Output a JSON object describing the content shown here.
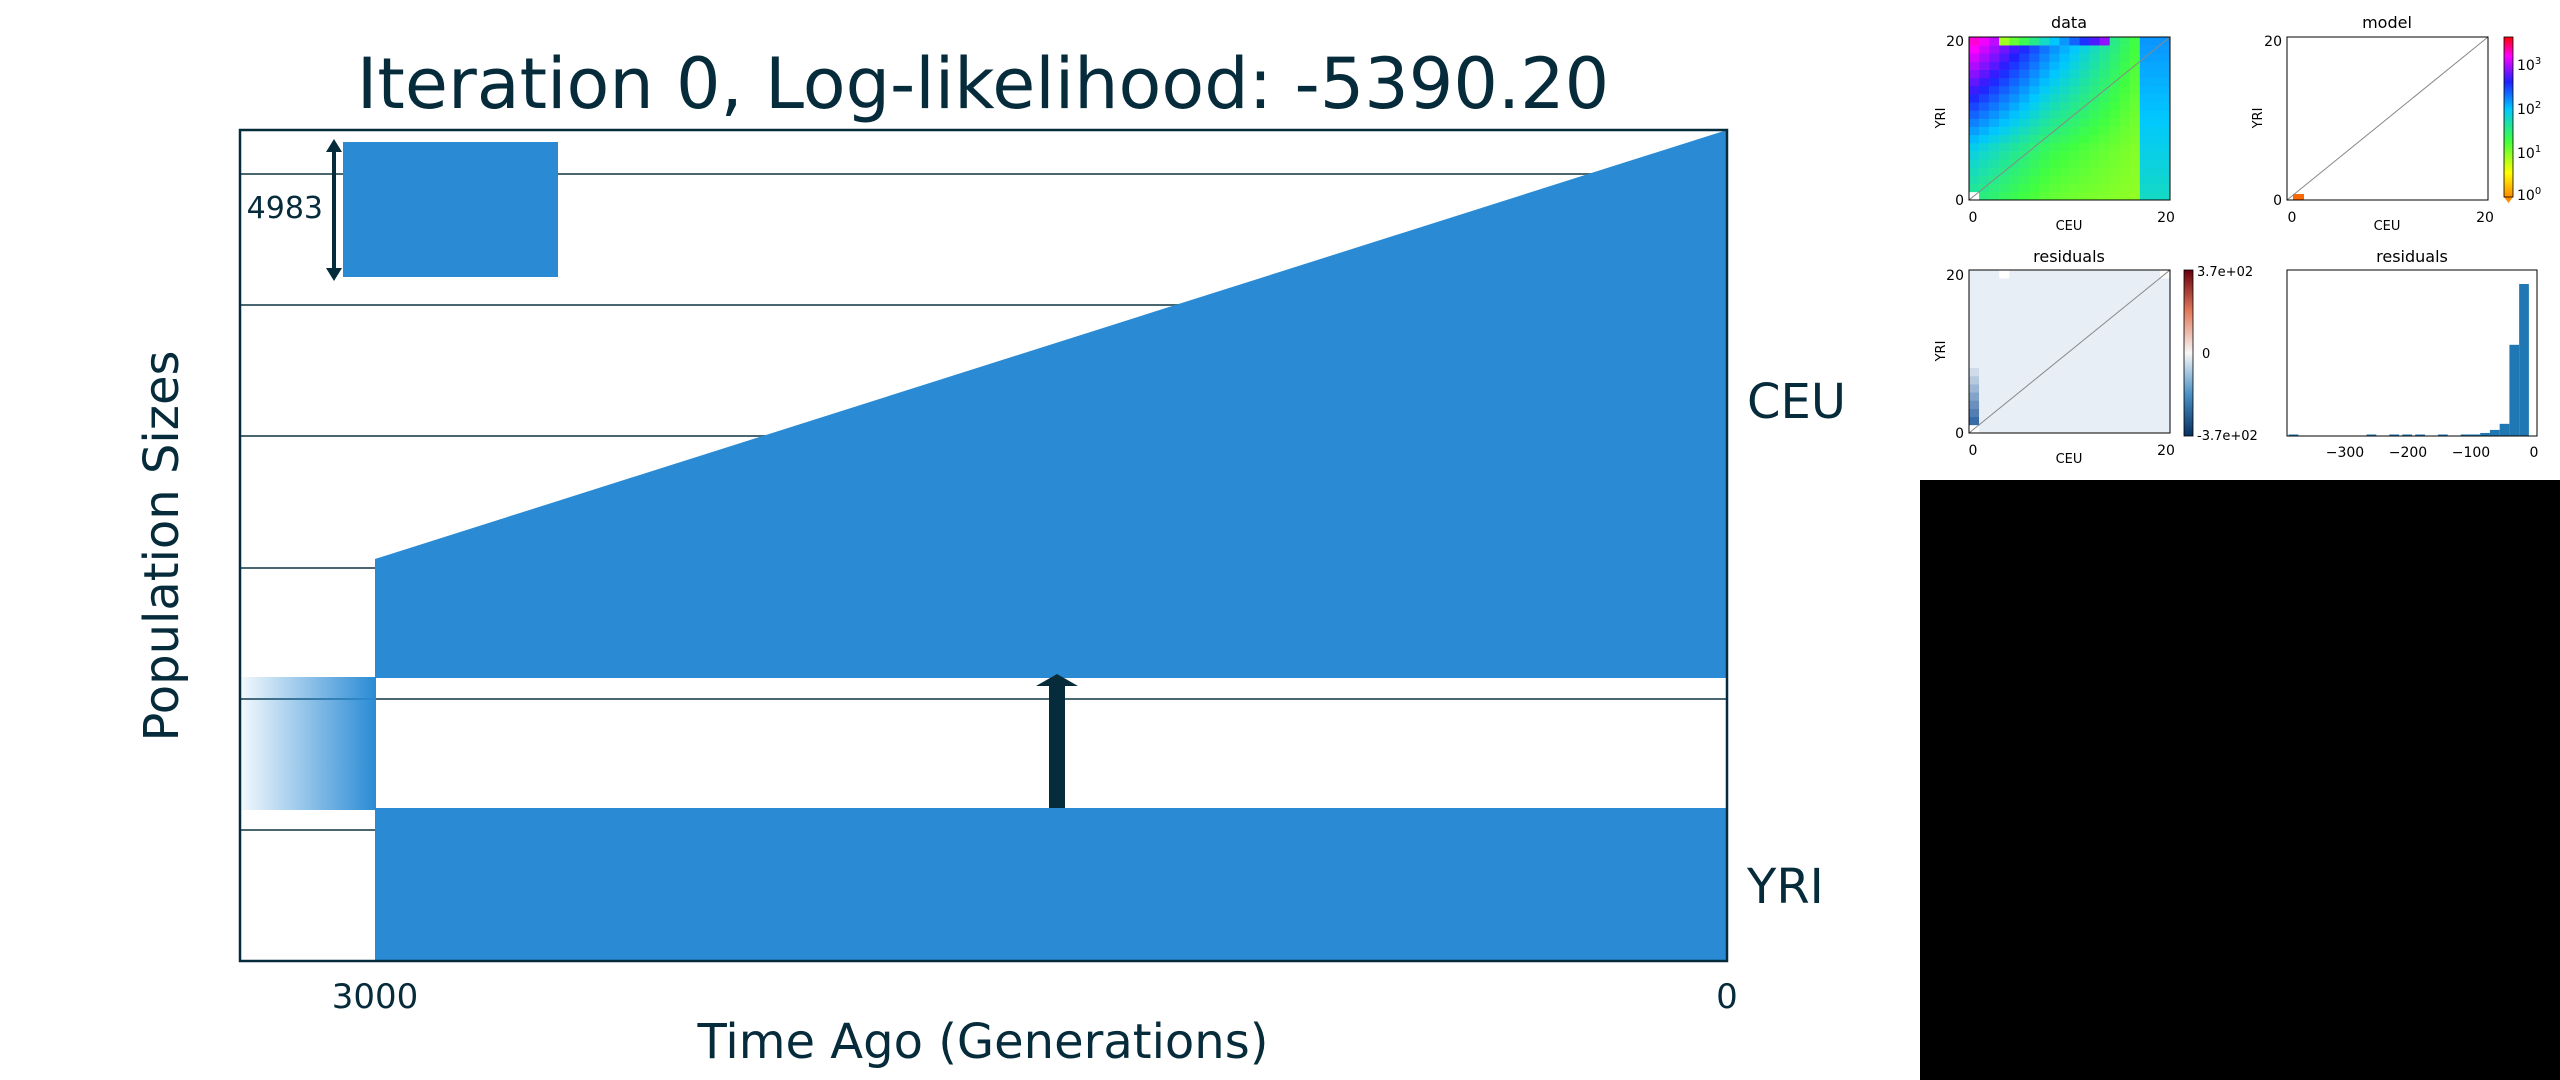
{
  "chart_data": [
    {
      "type": "area",
      "title": "Iteration 0, Log-likelihood: -5390.20",
      "xlabel": "Time Ago (Generations)",
      "ylabel": "Population Sizes",
      "x_ticks": [
        "3000",
        "0"
      ],
      "xlim": [
        3200,
        0
      ],
      "scale_bar": {
        "label": "4983",
        "value": 4983
      },
      "populations": [
        {
          "name": "CEU",
          "size_at_3000": 4983,
          "size_at_0": 20000
        },
        {
          "name": "YRI",
          "size_at_3000": 5600,
          "size_at_0": 5600
        }
      ],
      "ancestral": {
        "time_start": 3200,
        "time_end": 3000
      },
      "split_time": 3000,
      "migration": {
        "time": 1500,
        "from": "YRI",
        "to": "CEU"
      },
      "colors": {
        "population": "#2a8bd4",
        "text": "#062b3b",
        "grid": "#4a6670"
      }
    },
    {
      "type": "heatmap",
      "title": "data",
      "xlabel": "CEU",
      "ylabel": "YRI",
      "xticks": [
        "0",
        "20"
      ],
      "yticks": [
        "0",
        "20"
      ]
    },
    {
      "type": "heatmap",
      "title": "model",
      "xlabel": "CEU",
      "ylabel": "YRI",
      "xticks": [
        "0",
        "20"
      ],
      "yticks": [
        "0",
        "20"
      ],
      "colorbar": {
        "scale": "log",
        "ticks": [
          "10",
          "10",
          "10",
          "10"
        ],
        "exponents": [
          "3",
          "2",
          "1",
          "0"
        ]
      }
    },
    {
      "type": "heatmap",
      "title": "residuals",
      "xlabel": "CEU",
      "ylabel": "YRI",
      "xticks": [
        "0",
        "20"
      ],
      "yticks": [
        "0",
        "20"
      ],
      "colorbar": {
        "ticks": [
          "3.7e+02",
          "0",
          "-3.7e+02"
        ],
        "range": [
          -370,
          370
        ]
      }
    },
    {
      "type": "bar",
      "title": "residuals",
      "xticks": [
        "−300",
        "−200",
        "−100",
        "0"
      ],
      "xlim": [
        -380,
        5
      ],
      "bins": [
        {
          "x": -370,
          "count": 1
        },
        {
          "x": -250,
          "count": 1
        },
        {
          "x": -215,
          "count": 1
        },
        {
          "x": -195,
          "count": 1
        },
        {
          "x": -175,
          "count": 1
        },
        {
          "x": -140,
          "count": 1
        },
        {
          "x": -105,
          "count": 1
        },
        {
          "x": -90,
          "count": 1
        },
        {
          "x": -75,
          "count": 2
        },
        {
          "x": -60,
          "count": 4
        },
        {
          "x": -45,
          "count": 8
        },
        {
          "x": -30,
          "count": 60
        },
        {
          "x": -15,
          "count": 100
        }
      ]
    }
  ]
}
